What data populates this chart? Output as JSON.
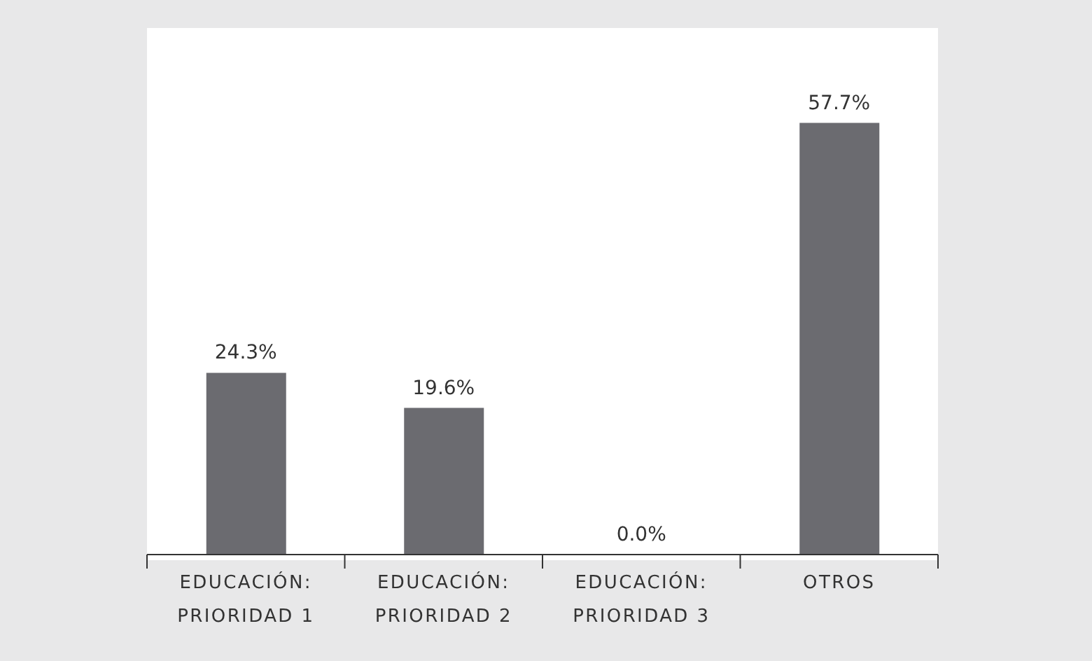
{
  "chart_data": {
    "type": "bar",
    "categories": [
      "EDUCACIÓN: PRIORIDAD 1",
      "EDUCACIÓN: PRIORIDAD 2",
      "EDUCACIÓN: PRIORIDAD 3",
      "OTROS"
    ],
    "values": [
      24.3,
      19.6,
      0.0,
      57.7
    ],
    "value_labels": [
      "24.3%",
      "19.6%",
      "0.0%",
      "57.7%"
    ],
    "color": "#6b6b70",
    "grid": false,
    "legend": false
  }
}
